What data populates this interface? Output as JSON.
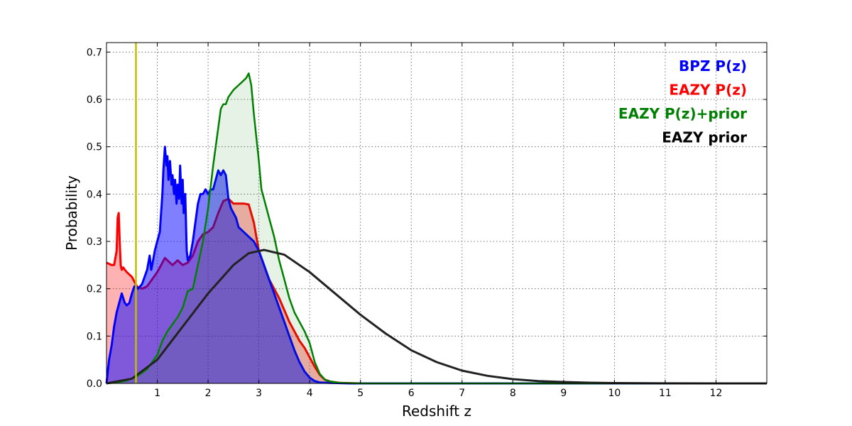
{
  "chart_data": {
    "type": "area",
    "title": "",
    "xlabel": "Redshift z",
    "ylabel": "Probability",
    "xlim": [
      0,
      13
    ],
    "ylim": [
      0,
      0.72
    ],
    "xticks": [
      1,
      2,
      3,
      4,
      5,
      6,
      7,
      8,
      9,
      10,
      11,
      12
    ],
    "xtick_labels": [
      "1",
      "2",
      "3",
      "4",
      "5",
      "6",
      "7",
      "8",
      "9",
      "10",
      "11",
      "12"
    ],
    "yticks": [
      0,
      0.1,
      0.2,
      0.3,
      0.4,
      0.5,
      0.6,
      0.7
    ],
    "ytick_labels": [
      "0.0",
      "0.1",
      "0.2",
      "0.3",
      "0.4",
      "0.5",
      "0.6",
      "0.7"
    ],
    "grid": true,
    "legend_position": "top-right",
    "vertical_line": {
      "x": 0.58,
      "color": "#bfbf00"
    },
    "series": [
      {
        "name": "EAZY P(z)",
        "color": "#ff0000",
        "fill": "#ff0000",
        "fill_opacity": 0.3,
        "line_width": 3,
        "x": [
          0,
          0.1,
          0.15,
          0.2,
          0.22,
          0.24,
          0.26,
          0.28,
          0.3,
          0.33,
          0.36,
          0.4,
          0.45,
          0.5,
          0.55,
          0.6,
          0.7,
          0.8,
          0.9,
          1.0,
          1.1,
          1.15,
          1.2,
          1.3,
          1.4,
          1.5,
          1.6,
          1.7,
          1.8,
          1.9,
          2.0,
          2.1,
          2.2,
          2.3,
          2.4,
          2.5,
          2.6,
          2.7,
          2.8,
          2.9,
          3.0,
          3.1,
          3.2,
          3.3,
          3.4,
          3.5,
          3.6,
          3.7,
          3.8,
          3.9,
          4.0,
          4.1,
          4.2,
          4.3,
          4.4,
          4.6,
          5.0,
          6.0,
          13
        ],
        "y": [
          0.255,
          0.25,
          0.25,
          0.28,
          0.35,
          0.36,
          0.3,
          0.25,
          0.24,
          0.245,
          0.24,
          0.235,
          0.23,
          0.225,
          0.215,
          0.205,
          0.2,
          0.205,
          0.22,
          0.235,
          0.255,
          0.265,
          0.26,
          0.25,
          0.26,
          0.25,
          0.255,
          0.27,
          0.3,
          0.315,
          0.32,
          0.33,
          0.36,
          0.385,
          0.39,
          0.38,
          0.38,
          0.38,
          0.378,
          0.34,
          0.28,
          0.25,
          0.22,
          0.2,
          0.18,
          0.155,
          0.13,
          0.11,
          0.09,
          0.075,
          0.055,
          0.035,
          0.018,
          0.008,
          0.004,
          0.001,
          0,
          0,
          0
        ]
      },
      {
        "name": "BPZ P(z)",
        "color": "#0000ff",
        "fill": "#0000ff",
        "fill_opacity": 0.5,
        "line_width": 3,
        "x": [
          0,
          0.05,
          0.1,
          0.15,
          0.2,
          0.25,
          0.3,
          0.33,
          0.36,
          0.4,
          0.45,
          0.5,
          0.55,
          0.58,
          0.62,
          0.7,
          0.8,
          0.85,
          0.88,
          0.9,
          0.95,
          1.0,
          1.05,
          1.1,
          1.12,
          1.15,
          1.18,
          1.2,
          1.22,
          1.25,
          1.28,
          1.3,
          1.33,
          1.35,
          1.38,
          1.4,
          1.43,
          1.45,
          1.48,
          1.5,
          1.52,
          1.55,
          1.58,
          1.6,
          1.65,
          1.7,
          1.75,
          1.8,
          1.85,
          1.9,
          1.95,
          2.0,
          2.05,
          2.1,
          2.15,
          2.2,
          2.25,
          2.3,
          2.35,
          2.4,
          2.45,
          2.5,
          2.55,
          2.6,
          2.7,
          2.8,
          2.9,
          3.0,
          3.1,
          3.2,
          3.3,
          3.4,
          3.5,
          3.6,
          3.7,
          3.8,
          3.9,
          4.0,
          4.1,
          4.2,
          4.4,
          4.8,
          13
        ],
        "y": [
          0,
          0.05,
          0.08,
          0.12,
          0.15,
          0.17,
          0.19,
          0.18,
          0.17,
          0.165,
          0.17,
          0.19,
          0.205,
          0.205,
          0.2,
          0.21,
          0.24,
          0.27,
          0.24,
          0.25,
          0.28,
          0.3,
          0.32,
          0.4,
          0.45,
          0.5,
          0.46,
          0.48,
          0.43,
          0.47,
          0.42,
          0.44,
          0.4,
          0.43,
          0.38,
          0.42,
          0.39,
          0.46,
          0.38,
          0.43,
          0.36,
          0.4,
          0.28,
          0.26,
          0.27,
          0.3,
          0.34,
          0.38,
          0.4,
          0.4,
          0.41,
          0.4,
          0.41,
          0.41,
          0.43,
          0.45,
          0.44,
          0.45,
          0.44,
          0.39,
          0.37,
          0.36,
          0.35,
          0.33,
          0.32,
          0.31,
          0.3,
          0.28,
          0.25,
          0.22,
          0.19,
          0.16,
          0.13,
          0.1,
          0.07,
          0.045,
          0.025,
          0.012,
          0.005,
          0.002,
          0.001,
          0,
          0
        ]
      },
      {
        "name": "EAZY P(z)+prior",
        "color": "#008000",
        "fill": "#008000",
        "fill_opacity": 0.1,
        "line_width": 2.5,
        "x": [
          0,
          0.2,
          0.4,
          0.6,
          0.8,
          1.0,
          1.1,
          1.2,
          1.3,
          1.4,
          1.5,
          1.6,
          1.7,
          1.8,
          1.9,
          2.0,
          2.1,
          2.2,
          2.25,
          2.3,
          2.35,
          2.4,
          2.5,
          2.6,
          2.7,
          2.75,
          2.8,
          2.85,
          2.9,
          3.0,
          3.05,
          3.1,
          3.2,
          3.3,
          3.4,
          3.5,
          3.6,
          3.7,
          3.8,
          3.9,
          4.0,
          4.1,
          4.2,
          4.3,
          4.4,
          4.6,
          5.0,
          6.0,
          13
        ],
        "y": [
          0,
          0.002,
          0.006,
          0.015,
          0.03,
          0.06,
          0.09,
          0.11,
          0.125,
          0.14,
          0.16,
          0.195,
          0.2,
          0.25,
          0.3,
          0.37,
          0.46,
          0.54,
          0.58,
          0.59,
          0.59,
          0.605,
          0.62,
          0.63,
          0.64,
          0.645,
          0.655,
          0.63,
          0.57,
          0.47,
          0.41,
          0.39,
          0.35,
          0.31,
          0.26,
          0.22,
          0.18,
          0.15,
          0.13,
          0.11,
          0.085,
          0.045,
          0.02,
          0.008,
          0.004,
          0.001,
          0,
          0,
          0
        ]
      },
      {
        "name": "EAZY prior",
        "color": "#222222",
        "fill": "none",
        "fill_opacity": 0,
        "line_width": 3,
        "x": [
          0,
          0.5,
          1.0,
          1.5,
          2.0,
          2.5,
          2.8,
          3.1,
          3.5,
          4.0,
          4.5,
          5.0,
          5.5,
          6.0,
          6.5,
          7.0,
          7.5,
          8.0,
          8.5,
          9.0,
          9.5,
          10.0,
          11.0,
          12.0,
          13.0
        ],
        "y": [
          0,
          0.01,
          0.05,
          0.12,
          0.19,
          0.25,
          0.275,
          0.282,
          0.272,
          0.235,
          0.19,
          0.145,
          0.105,
          0.07,
          0.045,
          0.027,
          0.016,
          0.009,
          0.005,
          0.003,
          0.0015,
          0.0008,
          0.0002,
          0,
          0
        ]
      }
    ],
    "legend": [
      {
        "label": "BPZ P(z)",
        "color": "#0000ff"
      },
      {
        "label": "EAZY P(z)",
        "color": "#ff0000"
      },
      {
        "label": "EAZY P(z)+prior",
        "color": "#008000"
      },
      {
        "label": "EAZY prior",
        "color": "#000000"
      }
    ]
  }
}
